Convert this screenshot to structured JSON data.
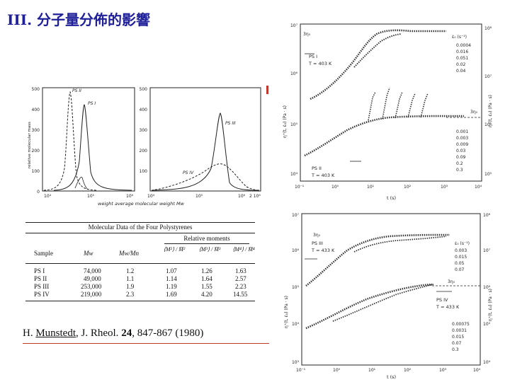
{
  "slide": {
    "title": "III. 分子量分佈的影響"
  },
  "left_plot": {
    "ylabel": "relative molecular mass",
    "xlabel": "weight average molecular weight Mw",
    "yticks": [
      "500",
      "400",
      "300",
      "200",
      "100",
      "0"
    ],
    "xticks_left": [
      "10⁴",
      "10⁵",
      "10⁶"
    ],
    "xticks_right": [
      "10⁴",
      "10⁵",
      "10⁶",
      "2 10⁶"
    ],
    "labels": [
      "PS II",
      "PS I",
      "PS III",
      "PS IV"
    ]
  },
  "table": {
    "caption": "Molecular Data of the Four Polystyrenes",
    "group_header": "Relative moments",
    "headers": [
      "Sample",
      "Mw",
      "Mw/Mn",
      "⟨M²⟩ / M̄²",
      "⟨M³⟩ / M̄³",
      "⟨M⁴⟩ / M̄⁴"
    ],
    "rows": [
      {
        "sample": "PS I",
        "mw": "74,000",
        "ratio": "1.2",
        "m2": "1.07",
        "m3": "1.26",
        "m4": "1.63"
      },
      {
        "sample": "PS II",
        "mw": "49,000",
        "ratio": "1.1",
        "m2": "1.14",
        "m3": "1.64",
        "m4": "2.57"
      },
      {
        "sample": "PS III",
        "mw": "253,000",
        "ratio": "1.9",
        "m2": "1.19",
        "m3": "1.55",
        "m4": "2.23"
      },
      {
        "sample": "PS IV",
        "mw": "219,000",
        "ratio": "2.3",
        "m2": "1.69",
        "m3": "4.20",
        "m4": "14.55"
      }
    ]
  },
  "citation": {
    "author": "H.",
    "name": "Munstedt",
    "journal": ", J. Rheol.",
    "volume": "24",
    "rest": ", 847-867 (1980)"
  },
  "top_right_plot": {
    "ylabel": "η⁺(t, ε̇₀) (Pa · s)",
    "xlabel": "t (s)",
    "label_ps1": "PS I",
    "label_ps1_temp": "T = 403 K",
    "label_ps2": "PS II",
    "label_ps2_temp": "T = 403 K",
    "label_3eta": "3η₀",
    "legend_title_1": "ε̇₀ (s⁻¹)",
    "legend_1": [
      "0.0004",
      "0.016",
      "0.051",
      "0.02",
      "0.04"
    ],
    "legend_2": [
      "0.001",
      "0.003",
      "0.009",
      "0.03",
      "0.09",
      "0.2",
      "0.3"
    ],
    "xticks": [
      "10⁻¹",
      "10⁰",
      "10¹",
      "10²",
      "10³",
      "10⁴"
    ],
    "yticks_left": [
      "10⁷",
      "10⁶",
      "10⁵",
      "10⁴"
    ],
    "yticks_right": [
      "10⁸",
      "10⁷",
      "10⁶",
      "10⁵"
    ]
  },
  "bottom_right_plot": {
    "ylabel": "η⁺(t, ε̇₀) (Pa · s)",
    "xlabel": "t (s)",
    "label_ps3": "PS III",
    "label_ps3_temp": "T = 433 K",
    "label_ps4": "PS IV",
    "label_ps4_temp": "T = 433 K",
    "label_3eta": "3η₀",
    "legend_title": "ε̇₀ (s⁻¹)",
    "legend_1": [
      "0.003",
      "0.015",
      "0.05",
      "0.07"
    ],
    "legend_2": [
      "0.00075",
      "0.0031",
      "0.015",
      "0.07",
      "0.3"
    ],
    "xticks": [
      "10⁻¹",
      "10⁰",
      "10¹",
      "10²",
      "10³",
      "10⁴"
    ],
    "yticks_left": [
      "10⁷",
      "10⁶",
      "10⁵",
      "10⁴",
      "10³"
    ],
    "yticks_right": [
      "10⁸",
      "10⁷",
      "10⁶",
      "10⁵",
      "10⁴"
    ]
  }
}
